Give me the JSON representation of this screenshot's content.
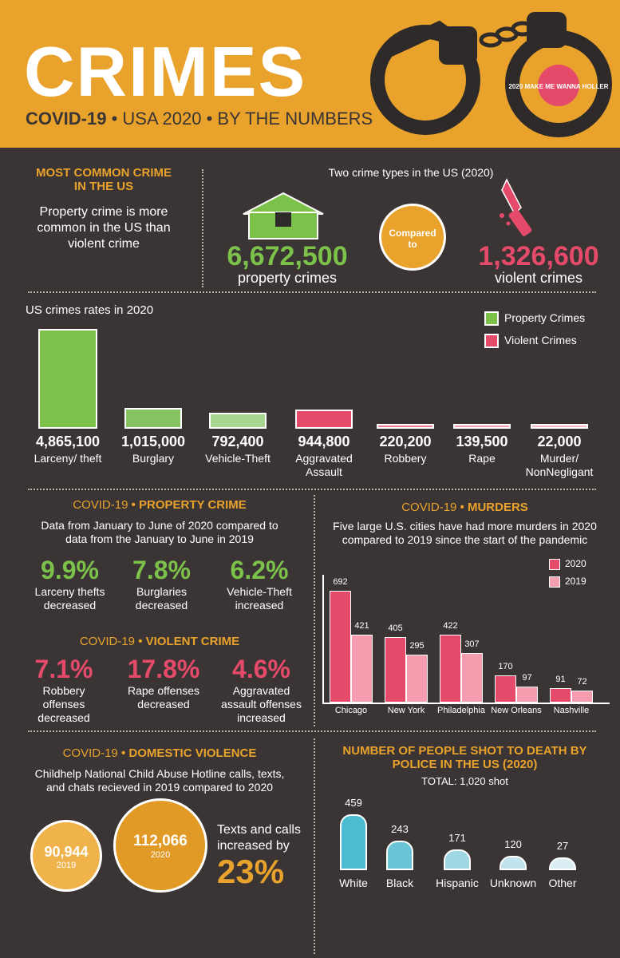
{
  "header": {
    "title": "CRIMES",
    "sub_bold": "COVID-19",
    "sub_rest": " • USA 2020 • BY THE NUMBERS",
    "logo_text": "2020 MAKE ME WANNA HOLLER"
  },
  "common": {
    "heading_line1": "MOST COMMON CRIME",
    "heading_line2": "IN THE US",
    "text_line1": "Property crime is more",
    "text_line2": "common in the US than",
    "text_line3": "violent crime"
  },
  "compare": {
    "title": "Two crime types in the US (2020)",
    "property_value": "6,672,500",
    "property_label": "property crimes",
    "circle_line1": "Compared",
    "circle_line2": "to",
    "violent_value": "1,326,600",
    "violent_label": "violent crimes"
  },
  "colors": {
    "orange": "#e9a22b",
    "green": "#7cc24a",
    "red": "#e64a6a",
    "dark": "#3a3534"
  },
  "chart_data": [
    {
      "type": "bar",
      "title": "US crimes rates in 2020",
      "categories": [
        "Larceny/ theft",
        "Burglary",
        "Vehicle-Theft",
        "Aggravated Assault",
        "Robbery",
        "Rape",
        "Murder/ NonNegligant"
      ],
      "values": [
        4865100,
        1015000,
        792400,
        944800,
        220200,
        139500,
        22000
      ],
      "value_labels": [
        "4,865,100",
        "1,015,000",
        "792,400",
        "944,800",
        "220,200",
        "139,500",
        "22,000"
      ],
      "series_type": [
        "Property Crimes",
        "Property Crimes",
        "Property Crimes",
        "Violent Crimes",
        "Violent Crimes",
        "Violent Crimes",
        "Violent Crimes"
      ],
      "legend": [
        "Property Crimes",
        "Violent Crimes"
      ],
      "legend_position": "top-right"
    },
    {
      "type": "bar",
      "title": "COVID-19 • MURDERS",
      "categories": [
        "Chicago",
        "New York",
        "Philadelphia",
        "New Orleans",
        "Nashville"
      ],
      "series": [
        {
          "name": "2020",
          "values": [
            692,
            405,
            422,
            170,
            91
          ]
        },
        {
          "name": "2019",
          "values": [
            421,
            295,
            307,
            97,
            72
          ]
        }
      ],
      "legend_position": "top-right"
    },
    {
      "type": "bar",
      "title": "NUMBER OF PEOPLE SHOT TO DEATH BY POLICE IN THE US (2020)",
      "subtitle": "TOTAL: 1,020 shot",
      "categories": [
        "White",
        "Black",
        "Hispanic",
        "Unknown",
        "Other"
      ],
      "values": [
        459,
        243,
        171,
        120,
        27
      ]
    }
  ],
  "property": {
    "heading_a": "COVID-19",
    "heading_b": "PROPERTY CRIME",
    "desc_line1": "Data from January to June of 2020 compared to",
    "desc_line2": "data from the January to June in 2019",
    "stats": [
      {
        "pct": "9.9%",
        "line1": "Larceny thefts",
        "line2": "decreased"
      },
      {
        "pct": "7.8%",
        "line1": "Burglaries",
        "line2": "decreased"
      },
      {
        "pct": "6.2%",
        "line1": "Vehicle-Theft",
        "line2": "increased"
      }
    ]
  },
  "violent": {
    "heading_a": "COVID-19",
    "heading_b": "VIOLENT CRIME",
    "stats": [
      {
        "pct": "7.1%",
        "line1": "Robbery",
        "line2": "offenses",
        "line3": "decreased"
      },
      {
        "pct": "17.8%",
        "line1": "Rape offenses",
        "line2": "decreased",
        "line3": ""
      },
      {
        "pct": "4.6%",
        "line1": "Aggravated",
        "line2": "assault offenses",
        "line3": "increased"
      }
    ]
  },
  "murders": {
    "heading_a": "COVID-19",
    "heading_b": "MURDERS",
    "desc_line1": "Five large U.S. cities have had more murders in 2020",
    "desc_line2": "compared to 2019 since the start of the pandemic"
  },
  "domestic": {
    "heading_a": "COVID-19",
    "heading_b": "DOMESTIC VIOLENCE",
    "desc_line1": "Childhelp National Child Abuse Hotline calls, texts,",
    "desc_line2": "and chats recieved in 2019 compared to 2020",
    "v2019": "90,944",
    "y2019": "2019",
    "v2020": "112,066",
    "y2020": "2020",
    "note_line1": "Texts and calls",
    "note_line2": "increased by",
    "note_pct": "23%"
  },
  "police": {
    "heading_line1": "NUMBER OF PEOPLE SHOT TO DEATH BY",
    "heading_line2": "POLICE IN THE US (2020)",
    "total": "TOTAL: 1,020 shot"
  }
}
